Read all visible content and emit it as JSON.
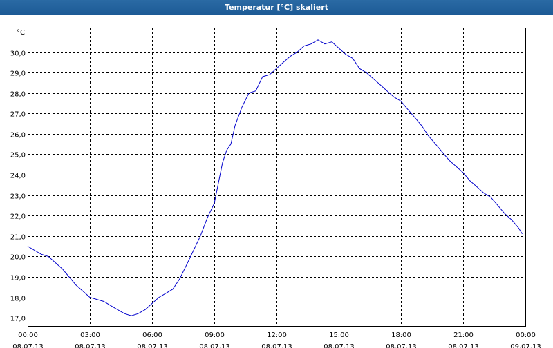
{
  "window": {
    "title": "Temperatur [°C] skaliert"
  },
  "chart_data": {
    "type": "line",
    "title": "Temperatur [°C] skaliert",
    "ylabel": "°C",
    "xlabel": "",
    "ylim": [
      16.6,
      31.2
    ],
    "xlim": [
      0,
      24
    ],
    "grid": true,
    "line_color": "#0000cc",
    "y_ticks": [
      "17,0",
      "18,0",
      "19,0",
      "20,0",
      "21,0",
      "22,0",
      "23,0",
      "24,0",
      "25,0",
      "26,0",
      "27,0",
      "28,0",
      "29,0",
      "30,0"
    ],
    "y_tick_values": [
      17,
      18,
      19,
      20,
      21,
      22,
      23,
      24,
      25,
      26,
      27,
      28,
      29,
      30
    ],
    "x_ticks": [
      {
        "time": "00:00",
        "date": "08.07.13",
        "hour": 0
      },
      {
        "time": "03:00",
        "date": "08.07.13",
        "hour": 3
      },
      {
        "time": "06:00",
        "date": "08.07.13",
        "hour": 6
      },
      {
        "time": "09:00",
        "date": "08.07.13",
        "hour": 9
      },
      {
        "time": "12:00",
        "date": "08.07.13",
        "hour": 12
      },
      {
        "time": "15:00",
        "date": "08.07.13",
        "hour": 15
      },
      {
        "time": "18:00",
        "date": "08.07.13",
        "hour": 18
      },
      {
        "time": "21:00",
        "date": "08.07.13",
        "hour": 21
      },
      {
        "time": "00:00",
        "date": "09.07.13",
        "hour": 24
      }
    ],
    "series": [
      {
        "x": [
          0,
          0.33,
          0.67,
          1.0,
          1.33,
          1.67,
          2.0,
          2.33,
          2.67,
          3.0,
          3.33,
          3.67,
          4.0,
          4.33,
          4.67,
          5.0,
          5.33,
          5.67,
          6.0,
          6.33,
          6.67,
          7.0,
          7.33,
          7.67,
          8.0,
          8.33,
          8.67,
          9.0,
          9.2,
          9.4,
          9.6,
          9.8,
          10.0,
          10.33,
          10.67,
          11.0,
          11.33,
          11.67,
          12.0,
          12.33,
          12.67,
          13.0,
          13.33,
          13.67,
          14.0,
          14.33,
          14.67,
          15.0,
          15.33,
          15.67,
          16.0,
          16.33,
          16.67,
          17.0,
          17.33,
          17.67,
          18.0,
          18.33,
          18.67,
          19.0,
          19.33,
          19.67,
          20.0,
          20.33,
          20.67,
          21.0,
          21.33,
          21.67,
          22.0,
          22.33,
          22.67,
          23.0,
          23.33,
          23.67,
          23.85
        ],
        "y": [
          20.5,
          20.3,
          20.1,
          20.0,
          19.7,
          19.4,
          19.0,
          18.6,
          18.3,
          18.0,
          17.9,
          17.8,
          17.6,
          17.4,
          17.2,
          17.1,
          17.2,
          17.4,
          17.7,
          18.0,
          18.2,
          18.4,
          18.9,
          19.6,
          20.3,
          21.0,
          21.9,
          22.6,
          23.6,
          24.6,
          25.2,
          25.5,
          26.4,
          27.3,
          28.0,
          28.1,
          28.8,
          28.9,
          29.2,
          29.5,
          29.8,
          30.0,
          30.3,
          30.4,
          30.6,
          30.4,
          30.5,
          30.2,
          29.9,
          29.7,
          29.2,
          29.0,
          28.7,
          28.4,
          28.1,
          27.8,
          27.6,
          27.2,
          26.8,
          26.4,
          25.9,
          25.5,
          25.1,
          24.7,
          24.4,
          24.1,
          23.7,
          23.4,
          23.1,
          22.9,
          22.5,
          22.1,
          21.8,
          21.4,
          21.1
        ]
      }
    ]
  }
}
